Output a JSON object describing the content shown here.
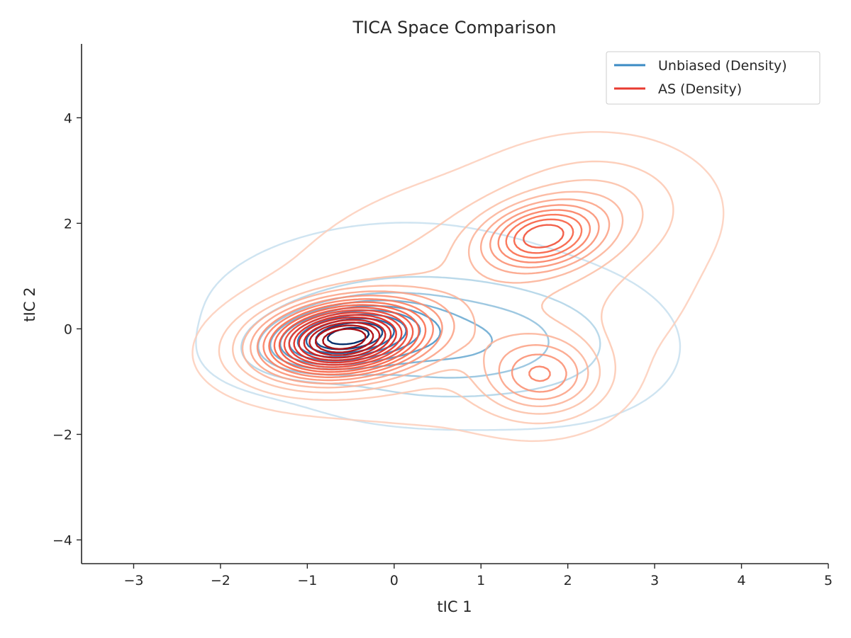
{
  "chart_data": {
    "type": "contour",
    "title": "TICA Space Comparison",
    "xlabel": "tIC 1",
    "ylabel": "tIC 2",
    "xlim": [
      -3.6,
      5.0
    ],
    "ylim": [
      -4.45,
      5.4
    ],
    "xticks": [
      -3,
      -2,
      -1,
      0,
      1,
      2,
      3,
      4,
      5
    ],
    "xtick_labels": [
      "−3",
      "−2",
      "−1",
      "0",
      "1",
      "2",
      "3",
      "4",
      "5"
    ],
    "yticks": [
      -4,
      -2,
      0,
      2,
      4
    ],
    "ytick_labels": [
      "−4",
      "−2",
      "0",
      "2",
      "4"
    ],
    "grid": false,
    "legend": {
      "placement": "top-right",
      "entries": [
        {
          "label": "Unbiased (Density)",
          "color": "#3a8ac4"
        },
        {
          "label": "AS (Density)",
          "color": "#e83a30"
        }
      ]
    },
    "series": [
      {
        "name": "Unbiased (Density)",
        "colormap": "Blues",
        "components": [
          {
            "weight": 1.0,
            "mean": [
              -0.6,
              -0.15
            ],
            "sd": [
              0.55,
              0.38
            ],
            "rho": 0.3
          },
          {
            "weight": 0.35,
            "mean": [
              0.6,
              -0.3
            ],
            "sd": [
              0.9,
              0.7
            ],
            "rho": 0.1
          },
          {
            "weight": 0.12,
            "mean": [
              1.9,
              -0.4
            ],
            "sd": [
              0.8,
              0.8
            ],
            "rho": 0.0
          },
          {
            "weight": 0.1,
            "mean": [
              -0.3,
              0.6
            ],
            "sd": [
              1.2,
              0.9
            ],
            "rho": 0.2
          }
        ],
        "levels": 10
      },
      {
        "name": "AS (Density)",
        "colormap": "Reds",
        "components": [
          {
            "weight": 1.0,
            "mean": [
              -0.6,
              -0.2
            ],
            "sd": [
              0.62,
              0.48
            ],
            "rho": 0.2
          },
          {
            "weight": 0.45,
            "mean": [
              1.7,
              1.75
            ],
            "sd": [
              0.45,
              0.42
            ],
            "rho": 0.2
          },
          {
            "weight": 0.32,
            "mean": [
              1.7,
              -0.9
            ],
            "sd": [
              0.45,
              0.5
            ],
            "rho": 0.0
          },
          {
            "weight": 0.15,
            "mean": [
              1.0,
              0.6
            ],
            "sd": [
              1.3,
              1.3
            ],
            "rho": 0.2
          },
          {
            "weight": 0.12,
            "mean": [
              2.4,
              2.4
            ],
            "sd": [
              0.7,
              0.7
            ],
            "rho": 0.0
          }
        ],
        "levels": 18
      }
    ]
  }
}
